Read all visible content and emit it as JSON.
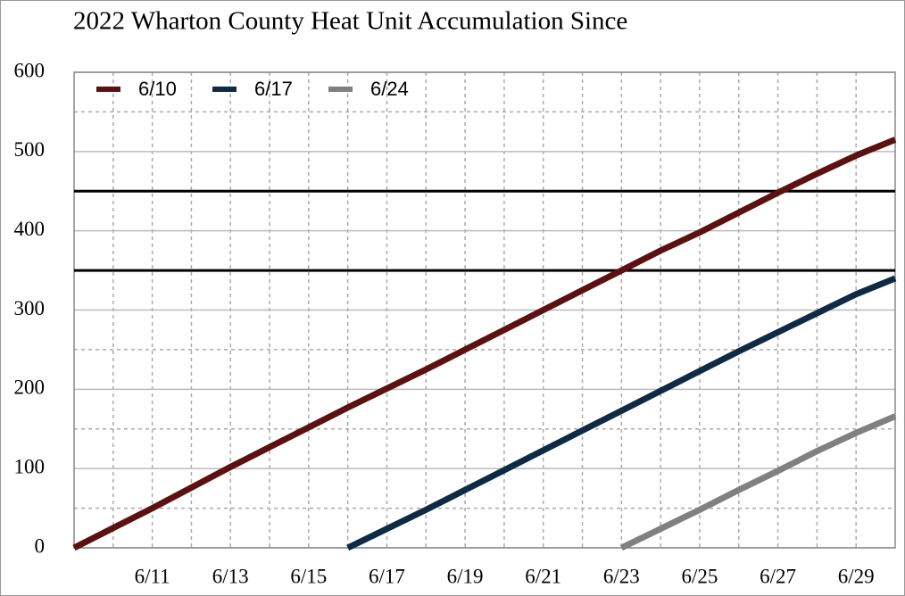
{
  "chart_data": {
    "type": "line",
    "title": "2022 Wharton County Heat Unit Accumulation Since",
    "categories": [
      null,
      null,
      "6/11",
      null,
      "6/13",
      null,
      "6/15",
      null,
      "6/17",
      null,
      "6/19",
      null,
      "6/21",
      null,
      "6/23",
      null,
      "6/25",
      null,
      "6/27",
      null,
      "6/29",
      null
    ],
    "series": [
      {
        "name": "6/10",
        "color": "#5c1010",
        "values": [
          0,
          25,
          50,
          76,
          102,
          127,
          152,
          177,
          201,
          225,
          250,
          275,
          300,
          325,
          350,
          375,
          398,
          423,
          448,
          472,
          495,
          515
        ]
      },
      {
        "name": "6/17",
        "color": "#0f2a44",
        "values": [
          null,
          null,
          null,
          null,
          null,
          null,
          null,
          0,
          24,
          48,
          73,
          98,
          123,
          148,
          173,
          198,
          223,
          248,
          272,
          296,
          320,
          340
        ]
      },
      {
        "name": "6/24",
        "color": "#808080",
        "values": [
          null,
          null,
          null,
          null,
          null,
          null,
          null,
          null,
          null,
          null,
          null,
          null,
          null,
          null,
          0,
          24,
          48,
          73,
          97,
          122,
          145,
          166
        ]
      }
    ],
    "ylim": [
      0,
      600
    ],
    "yticks": [
      0,
      100,
      200,
      300,
      400,
      500,
      600
    ],
    "minor_yticks": [
      50,
      150,
      250,
      350,
      450,
      550
    ],
    "reference_lines": [
      350,
      450
    ],
    "grid": true,
    "legend": "top-left"
  }
}
